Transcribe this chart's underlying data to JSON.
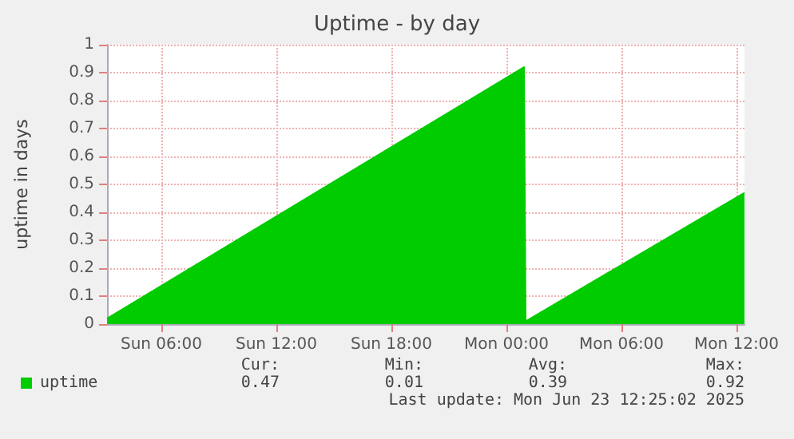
{
  "chart_data": {
    "type": "area",
    "title": "Uptime - by day",
    "ylabel": "uptime in days",
    "x": [
      "2025-06-22T03:10",
      "2025-06-23T00:55",
      "2025-06-23T01:00",
      "2025-06-23T12:25"
    ],
    "series": [
      {
        "name": "uptime",
        "color": "#00cc00",
        "values": [
          0.02,
          0.92,
          0.01,
          0.47
        ]
      }
    ],
    "xlim": [
      "2025-06-22T03:10",
      "2025-06-23T12:25"
    ],
    "xticks": [
      {
        "value": "2025-06-22T06:00",
        "label": "Sun 06:00"
      },
      {
        "value": "2025-06-22T12:00",
        "label": "Sun 12:00"
      },
      {
        "value": "2025-06-22T18:00",
        "label": "Sun 18:00"
      },
      {
        "value": "2025-06-23T00:00",
        "label": "Mon 00:00"
      },
      {
        "value": "2025-06-23T06:00",
        "label": "Mon 06:00"
      },
      {
        "value": "2025-06-23T12:00",
        "label": "Mon 12:00"
      }
    ],
    "ylim": [
      0,
      1
    ],
    "yticks": [
      0,
      0.1,
      0.2,
      0.3,
      0.4,
      0.5,
      0.6,
      0.7,
      0.8,
      0.9,
      1.0
    ],
    "grid": true,
    "legend": "bottom left",
    "marker": "none",
    "line_style": "solid",
    "annotations": [
      "Cur:",
      "Min:",
      "Avg:",
      "Max:",
      "0.47",
      "0.01",
      "0.39",
      "0.92",
      "Last update: Mon Jun 23 12:25:02 2025"
    ]
  }
}
